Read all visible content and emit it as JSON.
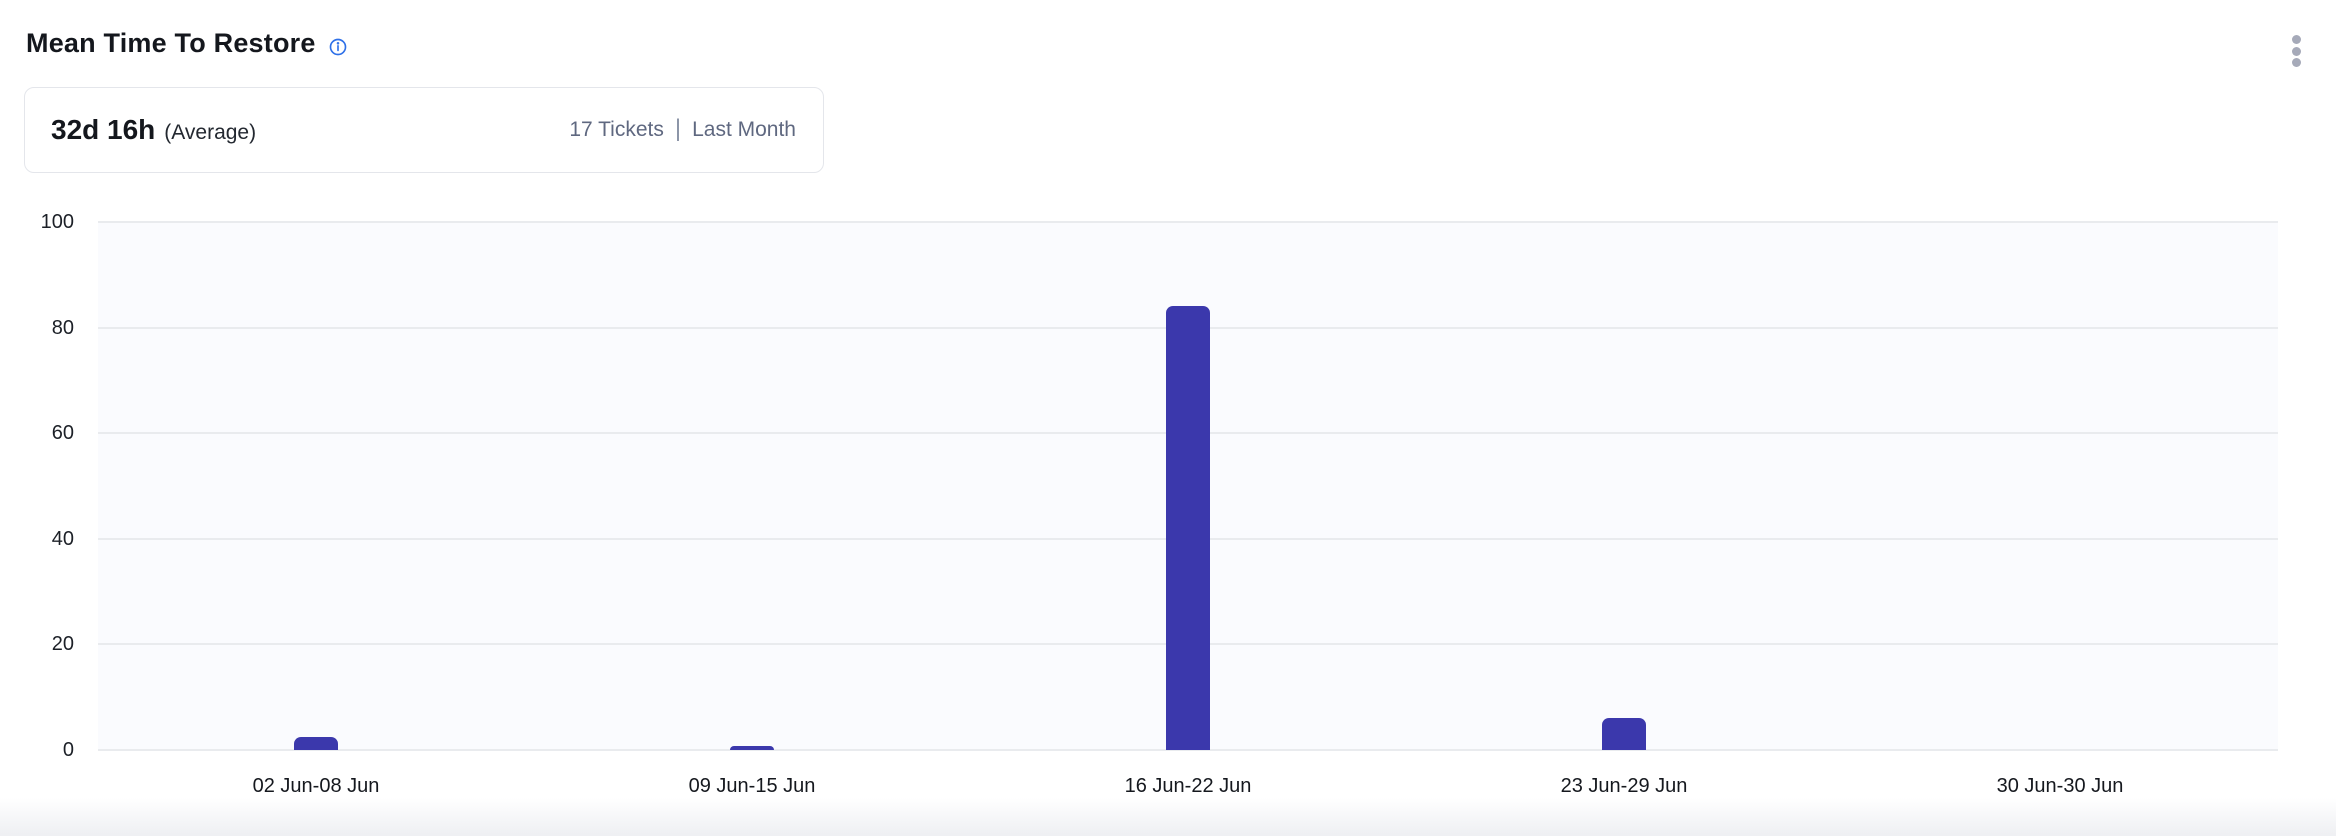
{
  "header": {
    "title": "Mean Time To Restore"
  },
  "summary_card": {
    "value": "32d 16h",
    "value_caption": "(Average)",
    "tickets": "17 Tickets",
    "separator": "|",
    "period": "Last Month"
  },
  "chart_data": {
    "type": "bar",
    "title": "Mean Time To Restore",
    "categories": [
      "02 Jun-08 Jun",
      "09 Jun-15 Jun",
      "16 Jun-22 Jun",
      "23 Jun-29 Jun",
      "30 Jun-30 Jun"
    ],
    "values": [
      2.5,
      0.8,
      84,
      6,
      0
    ],
    "xlabel": "",
    "ylabel": "",
    "ylim": [
      0,
      100
    ],
    "yticks": [
      0,
      20,
      40,
      60,
      80,
      100
    ],
    "grid": true,
    "legend": false,
    "bar_color": "#3b38ac",
    "plot_bg": "#fafbfe",
    "grid_color": "#e9ebee",
    "accent_blue": "#2e70e8",
    "kebab_color": "#a6aab9"
  }
}
